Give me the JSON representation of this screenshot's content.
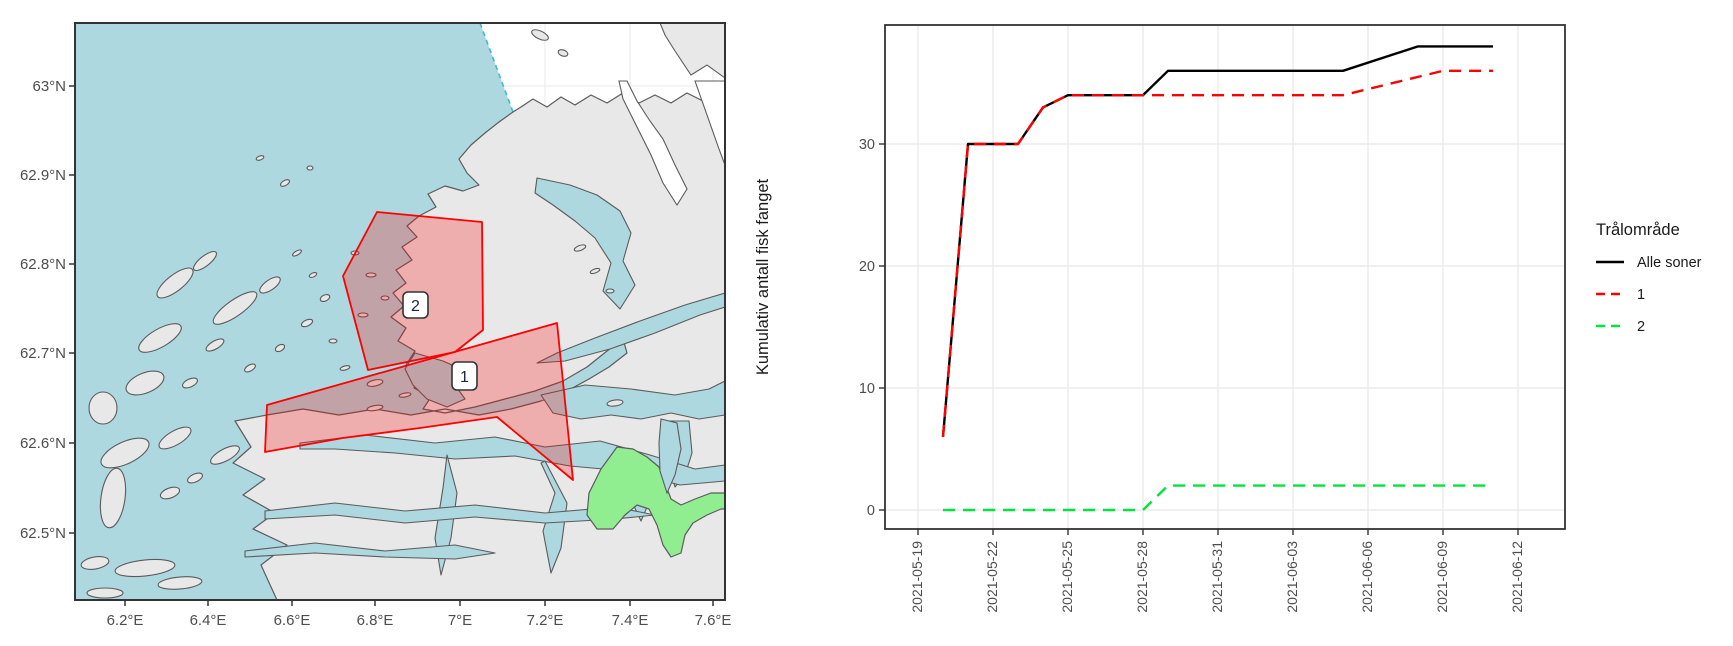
{
  "map": {
    "x_tick_labels": [
      "6.2°E",
      "6.4°E",
      "6.6°E",
      "6.8°E",
      "7°E",
      "7.2°E",
      "7.4°E",
      "7.6°E"
    ],
    "y_tick_labels": [
      "63°N",
      "62.9°N",
      "62.8°N",
      "62.7°N",
      "62.6°N",
      "62.5°N"
    ],
    "zone_labels": {
      "zone1": "1",
      "zone2": "2"
    },
    "colors": {
      "sea": "#ADD8DF",
      "land": "#E8E8E8",
      "coast": "#5B5B5B",
      "zone_fill": "rgba(255,0,0,0.25)",
      "zone_stroke": "#FF0000",
      "green_area": "#90EE90",
      "sea_boundary": "#3FB8D8",
      "graticule": "#EDEDED"
    }
  },
  "chart_data": {
    "type": "line",
    "title": "",
    "xlabel": "",
    "ylabel": "Kumulativ antall fisk fanget",
    "x_tick_labels": [
      "2021-05-19",
      "2021-05-22",
      "2021-05-25",
      "2021-05-28",
      "2021-05-31",
      "2021-06-03",
      "2021-06-06",
      "2021-06-09",
      "2021-06-12"
    ],
    "y_ticks": [
      0,
      10,
      20,
      30
    ],
    "xlim": [
      "2021-05-18",
      "2021-06-14"
    ],
    "ylim": [
      -1.5,
      39.8
    ],
    "grid": "major only, light gray on white, dark panel border (ggplot theme_bw)",
    "legend_position": "right",
    "legend_title": "Trålområde",
    "series": [
      {
        "name": "Alle soner",
        "color": "#000000",
        "dash": "solid",
        "points": [
          [
            "2021-05-20",
            6
          ],
          [
            "2021-05-21",
            30
          ],
          [
            "2021-05-23",
            30
          ],
          [
            "2021-05-24",
            33
          ],
          [
            "2021-05-25",
            34
          ],
          [
            "2021-05-28",
            34
          ],
          [
            "2021-05-29",
            36
          ],
          [
            "2021-06-05",
            36
          ],
          [
            "2021-06-08",
            38
          ],
          [
            "2021-06-11",
            38
          ]
        ]
      },
      {
        "name": "1",
        "color": "#FF0000",
        "dash": "dashed",
        "points": [
          [
            "2021-05-20",
            6
          ],
          [
            "2021-05-21",
            30
          ],
          [
            "2021-05-23",
            30
          ],
          [
            "2021-05-24",
            33
          ],
          [
            "2021-05-25",
            34
          ],
          [
            "2021-06-05",
            34
          ],
          [
            "2021-06-09",
            36
          ],
          [
            "2021-06-11",
            36
          ]
        ]
      },
      {
        "name": "2",
        "color": "#00E53C",
        "dash": "dashed",
        "points": [
          [
            "2021-05-20",
            0
          ],
          [
            "2021-05-28",
            0
          ],
          [
            "2021-05-29",
            2
          ],
          [
            "2021-06-11",
            2
          ]
        ]
      }
    ]
  }
}
